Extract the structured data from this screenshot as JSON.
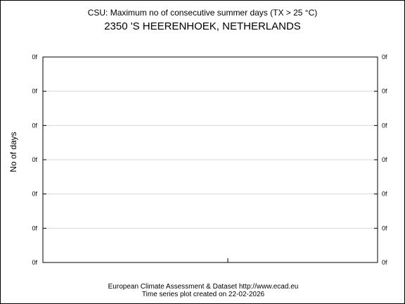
{
  "chart_data": {
    "type": "line",
    "title": "CSU: Maximum no of consecutive summer days (TX > 25 °C)",
    "subtitle": "2350 'S HEERENHOEK, NETHERLANDS",
    "ylabel": "No of days",
    "xlabel": "",
    "y_tick_labels": [
      "0f",
      "0f",
      "0f",
      "0f",
      "0f",
      "0f",
      "0f"
    ],
    "grid": true,
    "series": []
  },
  "footer": {
    "line1": "European Climate Assessment & Dataset  http://www.ecad.eu",
    "line2": "Time series plot created on 22-02-2026"
  }
}
